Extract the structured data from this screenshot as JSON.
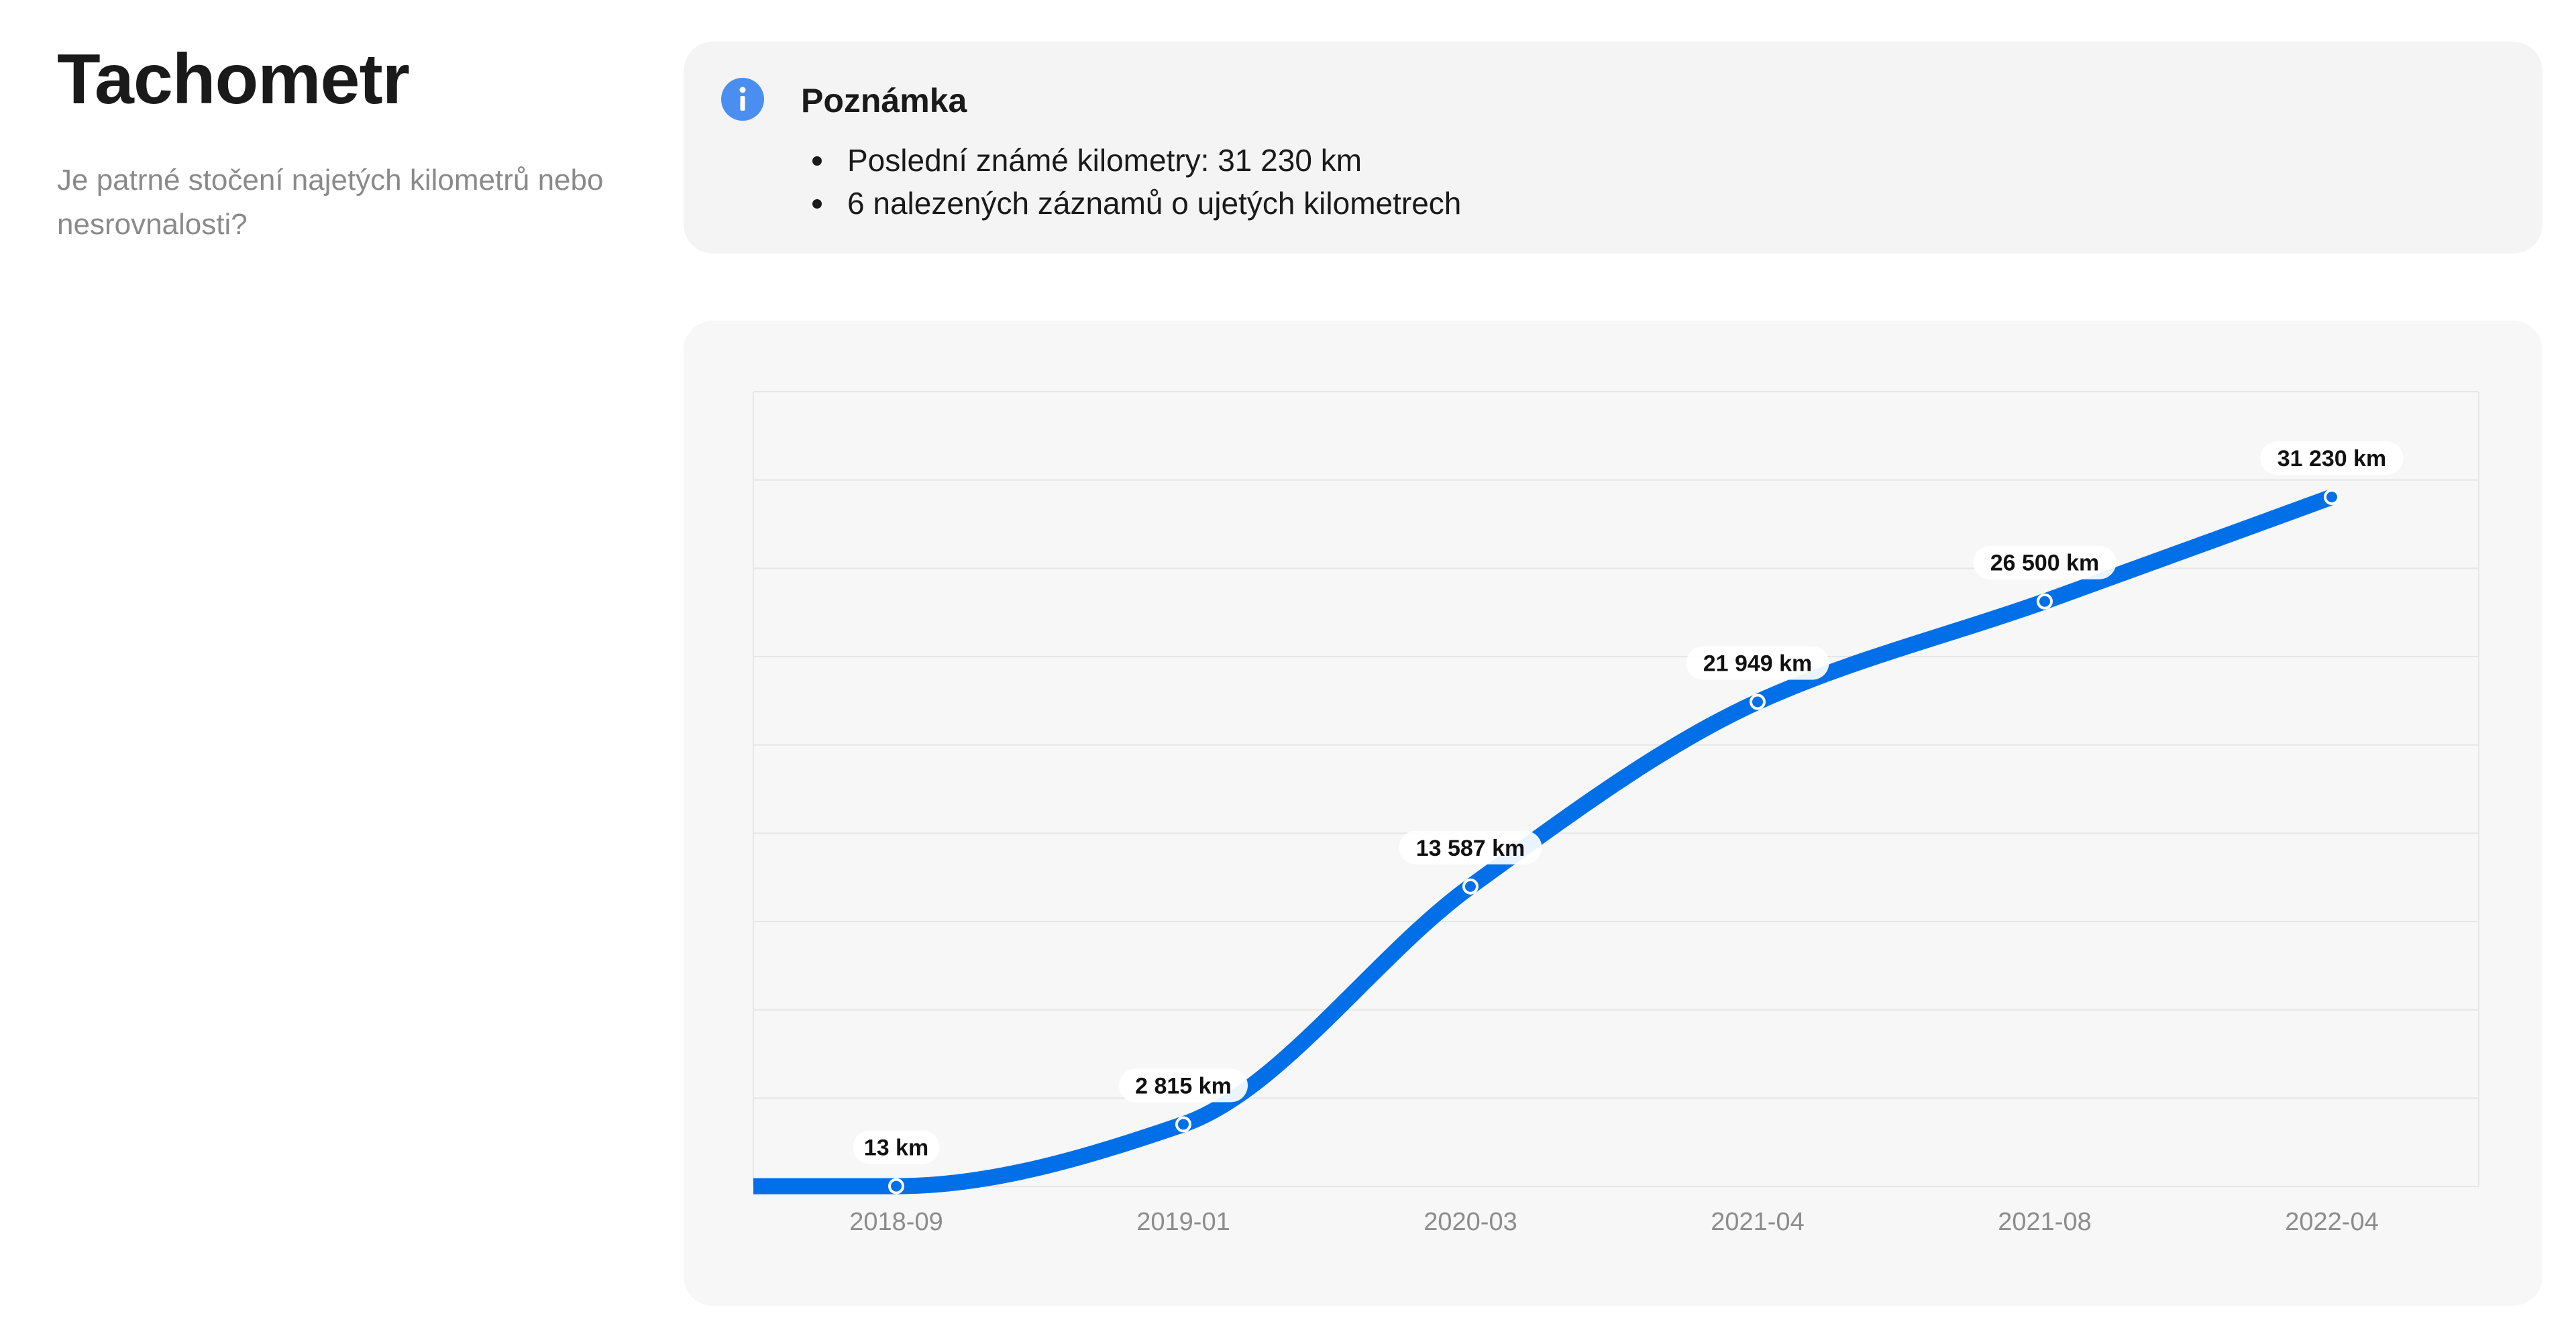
{
  "header": {
    "title": "Tachometr",
    "subtitle": "Je patrné stočení najetých kilometrů nebo nesrovnalosti?"
  },
  "note": {
    "icon": "info-icon",
    "title": "Poznámka",
    "items": [
      "Poslední známé kilometry: 31 230 km",
      "6 nalezených záznamů o ujetých kilometrech"
    ]
  },
  "colors": {
    "accent": "#006fe8",
    "info_icon": "#4a8ff0",
    "card_bg": "#f4f4f4",
    "chart_bg": "#f7f7f7",
    "grid": "#e6e6e6",
    "tick_text": "#8c8c8c"
  },
  "chart_data": {
    "type": "line",
    "title": "",
    "xlabel": "",
    "ylabel": "",
    "categories": [
      "2018-09",
      "2019-01",
      "2020-03",
      "2021-04",
      "2021-08",
      "2022-04"
    ],
    "values": [
      13,
      2815,
      13587,
      21949,
      26500,
      31230
    ],
    "labels": [
      "13 km",
      "2 815 km",
      "13 587 km",
      "21 949 km",
      "26 500 km",
      "31 230 km"
    ],
    "ylim": [
      0,
      36000
    ],
    "grid": true,
    "y_tick_labels_visible": false,
    "legend": "none",
    "smooth": true
  }
}
